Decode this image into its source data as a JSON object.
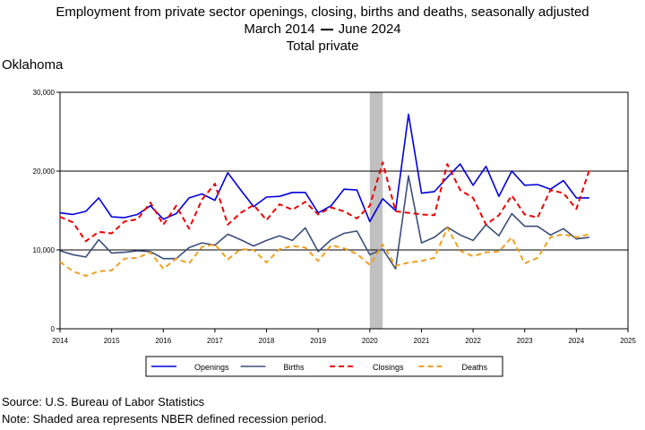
{
  "title": "Employment from private sector openings, closing, births and deaths, seasonally adjusted",
  "subtitle_start": "March 2014",
  "subtitle_end": "June 2024",
  "subtitle2": "Total private",
  "region": "Oklahoma",
  "source": "Source: U.S. Bureau of Labor Statistics",
  "note": "Note: Shaded area represents NBER defined recession period.",
  "chart_data": {
    "type": "line",
    "x_start": 2014.0,
    "x_step": 0.25,
    "xlim": [
      2014,
      2025
    ],
    "ylim": [
      0,
      30000
    ],
    "y_ticks": [
      0,
      10000,
      20000,
      30000
    ],
    "y_tick_labels": [
      "0",
      "10,000",
      "20,000",
      "30,000"
    ],
    "x_ticks": [
      2014,
      2015,
      2016,
      2017,
      2018,
      2019,
      2020,
      2021,
      2022,
      2023,
      2024,
      2025
    ],
    "x_tick_labels": [
      "2014",
      "2015",
      "2016",
      "2017",
      "2018",
      "2019",
      "2020",
      "2021",
      "2022",
      "2023",
      "2024",
      "2025"
    ],
    "gridlines_y": [
      10000,
      20000
    ],
    "recession": [
      2020.0,
      2020.25
    ],
    "legend_position": "bottom",
    "series": [
      {
        "name": "Openings",
        "color": "#0000dd",
        "style": "solid",
        "values": [
          14700,
          14500,
          14900,
          16600,
          14200,
          14100,
          14500,
          15600,
          13900,
          14600,
          16600,
          17100,
          16300,
          19800,
          17600,
          15500,
          16700,
          16800,
          17300,
          17300,
          14700,
          15600,
          17700,
          17600,
          13600,
          16500,
          15000,
          27200,
          17200,
          17400,
          19200,
          20900,
          18200,
          20600,
          16800,
          20000,
          18200,
          18300,
          17700,
          18800,
          16600,
          16600
        ]
      },
      {
        "name": "Births",
        "color": "#3a4e7c",
        "style": "solid",
        "values": [
          9900,
          9400,
          9100,
          11300,
          9600,
          9700,
          9900,
          9800,
          8900,
          8900,
          10300,
          10900,
          10600,
          12000,
          11300,
          10500,
          11200,
          11800,
          11200,
          12800,
          9800,
          11300,
          12100,
          12400,
          9400,
          10100,
          7600,
          19400,
          10900,
          11600,
          12900,
          11900,
          11200,
          13200,
          11800,
          14600,
          13000,
          13000,
          11900,
          12700,
          11400,
          11600
        ]
      },
      {
        "name": "Closings",
        "color": "#ee0000",
        "style": "dashed",
        "values": [
          14200,
          13500,
          11100,
          12300,
          12100,
          13600,
          13900,
          16000,
          13200,
          15600,
          12700,
          16400,
          18400,
          13200,
          14700,
          15700,
          13800,
          15800,
          15100,
          16100,
          14500,
          15400,
          14900,
          14000,
          15600,
          21100,
          14900,
          14700,
          14500,
          14400,
          20900,
          17600,
          16600,
          13200,
          14400,
          16900,
          14500,
          14100,
          17600,
          17200,
          15200,
          20100
        ]
      },
      {
        "name": "Deaths",
        "color": "#f0a020",
        "style": "dashed",
        "values": [
          8500,
          7300,
          6700,
          7300,
          7400,
          8900,
          9000,
          9700,
          7600,
          8900,
          8300,
          10400,
          10700,
          8800,
          10100,
          10000,
          8400,
          10100,
          10500,
          10300,
          8600,
          10600,
          10200,
          9500,
          8100,
          10700,
          8000,
          8400,
          8600,
          9000,
          12800,
          9900,
          9200,
          9700,
          9800,
          11600,
          8300,
          9000,
          11600,
          12000,
          11600,
          12000
        ]
      }
    ]
  }
}
